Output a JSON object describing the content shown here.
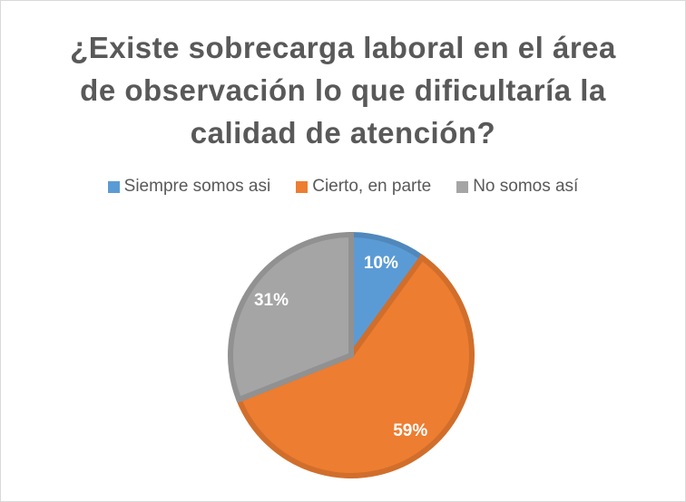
{
  "chart_data": {
    "type": "pie",
    "title": "¿Existe sobrecarga laboral en el área de observación lo que dificultaría la calidad de atención?",
    "categories": [
      "Siempre somos asi",
      "Cierto, en parte",
      "No somos así"
    ],
    "values": [
      10,
      59,
      31
    ],
    "value_labels": [
      "10%",
      "59%",
      "31%"
    ],
    "colors": [
      "#5b9bd5",
      "#ed7d31",
      "#a5a5a5"
    ],
    "legend": "top"
  }
}
